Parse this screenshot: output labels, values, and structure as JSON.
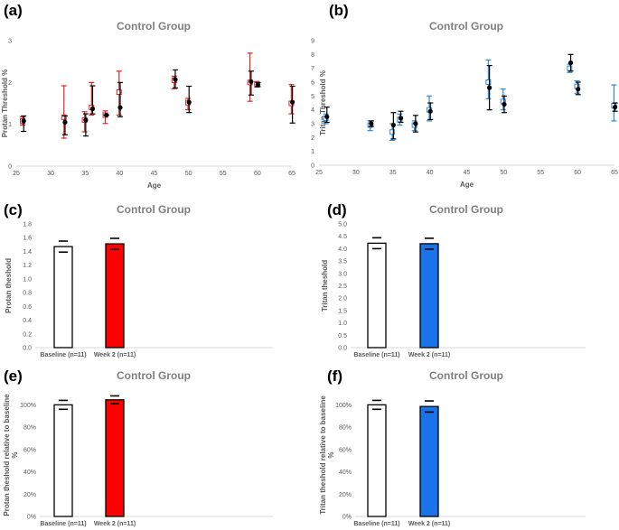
{
  "chart_data": [
    {
      "panel": "(a)",
      "type": "scatter",
      "title": "Control Group",
      "xlabel": "Age",
      "ylabel": "Protan Threshold %",
      "xlim": [
        25,
        65
      ],
      "ylim": [
        0,
        3
      ],
      "xticks": [
        25,
        30,
        35,
        40,
        45,
        50,
        55,
        60,
        65
      ],
      "yticks": [
        0,
        1,
        2,
        3
      ],
      "grid": false,
      "series": [
        {
          "marker": "open-square",
          "color": "#d62728",
          "x": [
            26,
            32,
            35,
            36,
            38,
            40,
            48,
            50,
            59,
            60,
            65
          ],
          "y": [
            1.08,
            1.17,
            1.1,
            1.4,
            1.22,
            1.77,
            2.05,
            1.52,
            2.0,
            1.97,
            1.5
          ],
          "err_low": [
            0.1,
            0.5,
            0.28,
            0.18,
            0.2,
            0.55,
            0.2,
            0.17,
            0.45,
            0.08,
            0.25
          ],
          "err_high": [
            0.1,
            0.75,
            0.2,
            0.6,
            0.1,
            0.5,
            0.1,
            0.1,
            0.7,
            0.05,
            0.45
          ]
        },
        {
          "marker": "filled-circle",
          "color": "#000000",
          "x": [
            26,
            32,
            35,
            36,
            38,
            40,
            48,
            50,
            59,
            60,
            65
          ],
          "y": [
            1.08,
            1.05,
            1.1,
            1.37,
            1.22,
            1.4,
            2.07,
            1.53,
            2.02,
            1.95,
            1.53
          ],
          "err_low": [
            0.25,
            0.3,
            0.38,
            0.12,
            0.0,
            0.22,
            0.2,
            0.25,
            0.32,
            0.05,
            0.5
          ],
          "err_high": [
            0.12,
            0.15,
            0.15,
            0.55,
            0.0,
            0.6,
            0.23,
            0.38,
            0.25,
            0.05,
            0.38
          ]
        }
      ]
    },
    {
      "panel": "(b)",
      "type": "scatter",
      "title": "Control Group",
      "xlabel": "Age",
      "ylabel": "Tritan Threshold %",
      "xlim": [
        25,
        65
      ],
      "ylim": [
        0,
        9
      ],
      "xticks": [
        25,
        30,
        35,
        40,
        45,
        50,
        55,
        60,
        65
      ],
      "yticks": [
        0,
        1,
        2,
        3,
        4,
        5,
        6,
        7,
        8,
        9
      ],
      "grid": false,
      "series": [
        {
          "marker": "open-square",
          "color": "#2e8ad8",
          "x": [
            26,
            32,
            35,
            36,
            38,
            40,
            48,
            50,
            59,
            60,
            65
          ],
          "y": [
            3.4,
            2.9,
            2.4,
            3.3,
            2.9,
            4.0,
            6.0,
            4.6,
            7.0,
            5.7,
            4.3
          ],
          "err_low": [
            0.4,
            0.4,
            0.6,
            0.4,
            0.4,
            0.8,
            1.2,
            0.6,
            0.3,
            0.5,
            1.1
          ],
          "err_high": [
            0.3,
            0.3,
            0.6,
            0.4,
            0.3,
            1.0,
            1.6,
            0.9,
            0.3,
            0.4,
            1.5
          ]
        },
        {
          "marker": "filled-circle",
          "color": "#000000",
          "x": [
            26,
            32,
            35,
            36,
            38,
            40,
            48,
            50,
            59,
            60,
            65
          ],
          "y": [
            3.5,
            3.0,
            2.9,
            3.4,
            3.0,
            3.9,
            5.6,
            4.4,
            7.4,
            5.5,
            4.2
          ],
          "err_low": [
            0.4,
            0.2,
            1.0,
            0.3,
            0.6,
            0.6,
            1.6,
            0.6,
            0.6,
            0.4,
            0.3
          ],
          "err_high": [
            0.7,
            0.2,
            0.9,
            0.5,
            0.6,
            0.6,
            1.6,
            0.6,
            0.6,
            0.5,
            0.3
          ]
        }
      ]
    },
    {
      "panel": "(c)",
      "type": "bar",
      "title": "Control Group",
      "xlabel": "",
      "ylabel": "Protan theshold",
      "categories": [
        "Baseline (n=11)",
        "Week 2 (n=11)"
      ],
      "values": [
        1.47,
        1.51
      ],
      "err_low": [
        0.08,
        0.08
      ],
      "err_high": [
        0.08,
        0.08
      ],
      "bar_colors": [
        "#ffffff",
        "#ff0000"
      ],
      "ylim": [
        0,
        1.8
      ],
      "yticks": [
        "0.0",
        "0.2",
        "0.4",
        "0.6",
        "0.8",
        "1.0",
        "1.2",
        "1.4",
        "1.6",
        "1.8"
      ],
      "grid": false
    },
    {
      "panel": "(d)",
      "type": "bar",
      "title": "Control Group",
      "xlabel": "",
      "ylabel": "Tritan theshold",
      "categories": [
        "Baseline (n=11)",
        "Week 2 (n=11)"
      ],
      "values": [
        4.22,
        4.2
      ],
      "err_low": [
        0.22,
        0.22
      ],
      "err_high": [
        0.22,
        0.22
      ],
      "bar_colors": [
        "#ffffff",
        "#1a73e8"
      ],
      "ylim": [
        0,
        5.0
      ],
      "yticks": [
        "0.0",
        "0.5",
        "1.0",
        "1.5",
        "2.0",
        "2.5",
        "3.0",
        "3.5",
        "4.0",
        "4.5",
        "5.0"
      ],
      "grid": false
    },
    {
      "panel": "(e)",
      "type": "bar",
      "title": "Control Group",
      "xlabel": "",
      "ylabel": "Protan theshold relative to baseline %",
      "categories": [
        "Baseline (n=11)",
        "Week 2 (n=11)"
      ],
      "values": [
        100,
        104.5
      ],
      "err_low": [
        4,
        3.5
      ],
      "err_high": [
        4,
        3.5
      ],
      "bar_colors": [
        "#ffffff",
        "#ff0000"
      ],
      "ylim": [
        0,
        110
      ],
      "yticks": [
        "0%",
        "20%",
        "40%",
        "60%",
        "80%",
        "100%"
      ],
      "grid": false
    },
    {
      "panel": "(f)",
      "type": "bar",
      "title": "Control Group",
      "xlabel": "",
      "ylabel": "Tritan theshold relative to baseline %",
      "categories": [
        "Baseline (n=11)",
        "Week 2 (n=11)"
      ],
      "values": [
        100,
        98.5
      ],
      "err_low": [
        4,
        5
      ],
      "err_high": [
        4,
        5
      ],
      "bar_colors": [
        "#ffffff",
        "#1a73e8"
      ],
      "ylim": [
        0,
        110
      ],
      "yticks": [
        "0%",
        "20%",
        "40%",
        "60%",
        "80%",
        "100%"
      ],
      "grid": false
    }
  ]
}
